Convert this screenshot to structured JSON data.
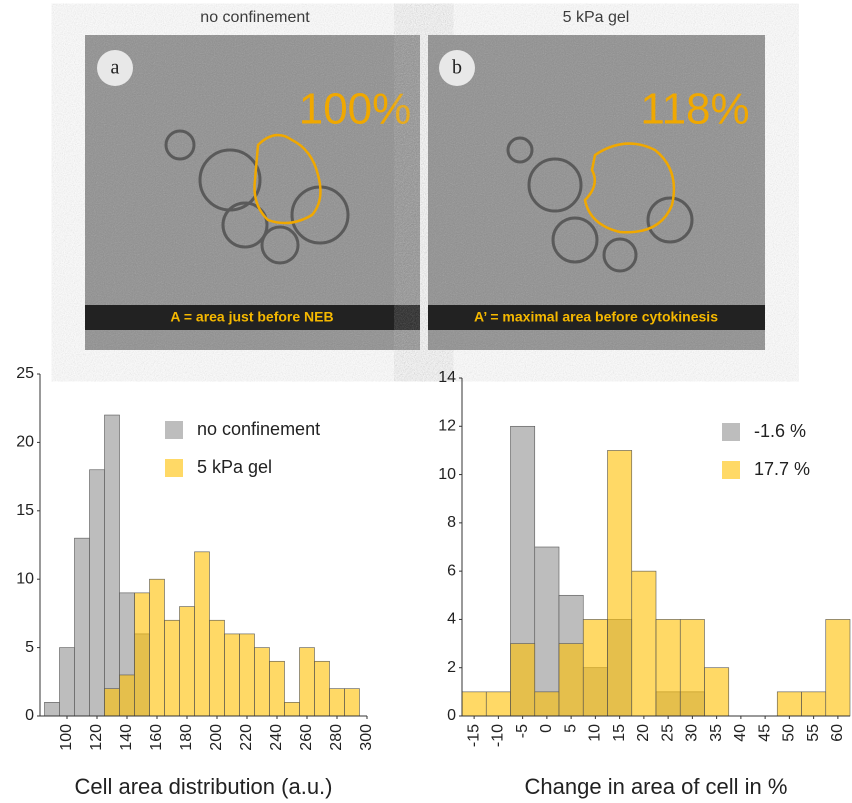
{
  "panels": [
    {
      "title": "no confinement",
      "label": "a",
      "percent": "100%",
      "caption": "A = area just before NEB"
    },
    {
      "title": "5 kPa gel",
      "label": "b",
      "percent": "118%",
      "caption": "A’ = maximal area before cytokinesis"
    }
  ],
  "chart_data": [
    {
      "type": "histogram",
      "xlabel": "Cell area distribution (a.u.)",
      "bins": [
        85,
        95,
        105,
        115,
        125,
        135,
        145,
        155,
        165,
        175,
        185,
        195,
        205,
        215,
        225,
        235,
        245,
        255,
        265,
        275,
        285,
        295
      ],
      "series": [
        {
          "name": "no confinement",
          "color": "#bdbdbd",
          "values": [
            1,
            5,
            13,
            18,
            22,
            9,
            6,
            0,
            0,
            0,
            0,
            0,
            0,
            0,
            0,
            0,
            0,
            0,
            0,
            0,
            0
          ]
        },
        {
          "name": "5 kPa gel",
          "color": "#ffc000",
          "values": [
            0,
            0,
            0,
            0,
            2,
            3,
            9,
            10,
            7,
            8,
            12,
            7,
            6,
            6,
            5,
            4,
            1,
            5,
            4,
            2,
            2
          ]
        }
      ],
      "xlim": [
        82,
        300
      ],
      "xticks": [
        100,
        120,
        140,
        160,
        180,
        200,
        220,
        240,
        260,
        280,
        300
      ],
      "ylim": [
        0,
        25
      ],
      "yticks": [
        0,
        5,
        10,
        15,
        20,
        25
      ],
      "legend": "top-right"
    },
    {
      "type": "histogram",
      "xlabel": "Change in area of cell in %",
      "bins": [
        -17.5,
        -12.5,
        -7.5,
        -2.5,
        2.5,
        7.5,
        12.5,
        17.5,
        22.5,
        27.5,
        32.5,
        37.5,
        42.5,
        47.5,
        52.5,
        57.5,
        62.5
      ],
      "series": [
        {
          "name": "-1.6 %",
          "color": "#bdbdbd",
          "values": [
            0,
            0,
            12,
            7,
            5,
            2,
            4,
            0,
            1,
            1,
            0,
            0,
            0,
            0,
            0,
            0
          ]
        },
        {
          "name": "17.7 %",
          "color": "#ffc000",
          "values": [
            1,
            1,
            3,
            1,
            3,
            4,
            11,
            6,
            4,
            4,
            2,
            0,
            0,
            1,
            1,
            4
          ]
        }
      ],
      "xlim": [
        -17.5,
        62.5
      ],
      "xticks": [
        -15,
        -10,
        -5,
        0,
        5,
        10,
        15,
        20,
        25,
        30,
        35,
        40,
        45,
        50,
        55,
        60
      ],
      "ylim": [
        0,
        14
      ],
      "yticks": [
        0,
        2,
        4,
        6,
        8,
        10,
        12,
        14
      ],
      "legend": "top-right"
    }
  ]
}
